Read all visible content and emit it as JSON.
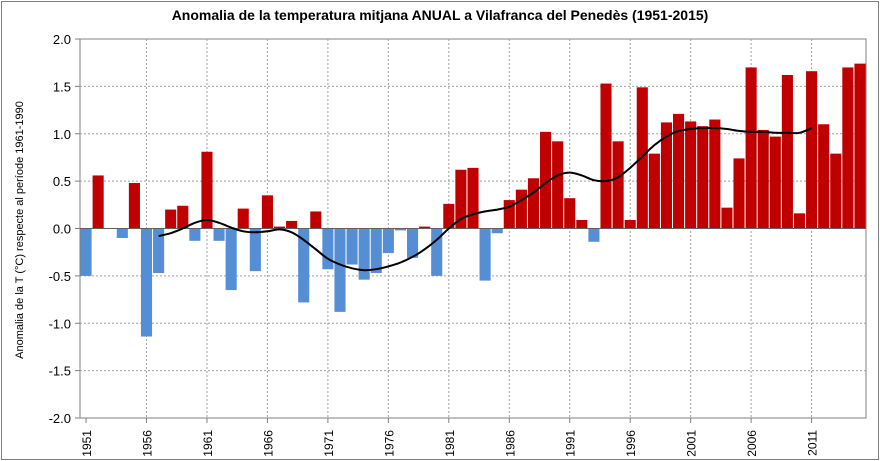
{
  "chart_data": {
    "type": "bar",
    "title": "Anomalia de la temperatura mitjana ANUAL a Vilafranca del Penedès (1951-2015)",
    "xlabel": "",
    "ylabel": "Anomalia de la T (°C) respecte al període 1961-1990",
    "ylim": [
      -2.0,
      2.0
    ],
    "yticks": [
      "2.0",
      "1.5",
      "1.0",
      "0.5",
      "0.0",
      "-0.5",
      "-1.0",
      "-1.5",
      "-2.0"
    ],
    "xticks": [
      "1951",
      "1956",
      "1961",
      "1966",
      "1971",
      "1976",
      "1981",
      "1986",
      "1991",
      "1996",
      "2001",
      "2006",
      "2011"
    ],
    "grid": true,
    "positive_color": "#C00000",
    "negative_color": "#558ED5",
    "smooth_color": "#000000",
    "years": [
      1951,
      1952,
      1953,
      1954,
      1955,
      1956,
      1957,
      1958,
      1959,
      1960,
      1961,
      1962,
      1963,
      1964,
      1965,
      1966,
      1967,
      1968,
      1969,
      1970,
      1971,
      1972,
      1973,
      1974,
      1975,
      1976,
      1977,
      1978,
      1979,
      1980,
      1981,
      1982,
      1983,
      1984,
      1985,
      1986,
      1987,
      1988,
      1989,
      1990,
      1991,
      1992,
      1993,
      1994,
      1995,
      1996,
      1997,
      1998,
      1999,
      2000,
      2001,
      2002,
      2003,
      2004,
      2005,
      2006,
      2007,
      2008,
      2009,
      2010,
      2011,
      2012,
      2013,
      2014,
      2015
    ],
    "values": [
      -0.5,
      0.56,
      0.0,
      -0.1,
      0.48,
      -1.14,
      -0.47,
      0.2,
      0.24,
      -0.13,
      0.81,
      -0.13,
      -0.65,
      0.21,
      -0.45,
      0.35,
      0.02,
      0.08,
      -0.78,
      0.18,
      -0.43,
      -0.88,
      -0.38,
      -0.54,
      -0.47,
      -0.26,
      -0.02,
      -0.31,
      0.02,
      -0.5,
      0.26,
      0.62,
      0.64,
      -0.55,
      -0.05,
      0.3,
      0.41,
      0.53,
      1.02,
      0.92,
      0.32,
      0.09,
      -0.14,
      1.53,
      0.92,
      0.09,
      1.49,
      0.79,
      1.12,
      1.21,
      1.13,
      1.08,
      1.15,
      0.22,
      0.74,
      1.7,
      1.04,
      0.97,
      1.62,
      0.16,
      1.66,
      1.1,
      0.79,
      1.7,
      1.74
    ],
    "smooth_years": [
      1957,
      1958,
      1959,
      1960,
      1961,
      1962,
      1963,
      1964,
      1965,
      1966,
      1967,
      1968,
      1969,
      1970,
      1971,
      1972,
      1973,
      1974,
      1975,
      1976,
      1977,
      1978,
      1979,
      1980,
      1981,
      1982,
      1983,
      1984,
      1985,
      1986,
      1987,
      1988,
      1989,
      1990,
      1991,
      1992,
      1993,
      1994,
      1995,
      1996,
      1997,
      1998,
      1999,
      2000,
      2001,
      2002,
      2003,
      2004,
      2005,
      2006,
      2007,
      2008,
      2009,
      2010,
      2011
    ],
    "smooth_values": [
      -0.08,
      -0.05,
      0.0,
      0.06,
      0.09,
      0.06,
      0.01,
      -0.03,
      -0.04,
      -0.03,
      -0.01,
      -0.04,
      -0.12,
      -0.22,
      -0.32,
      -0.38,
      -0.42,
      -0.44,
      -0.43,
      -0.4,
      -0.36,
      -0.3,
      -0.22,
      -0.12,
      0.0,
      0.1,
      0.15,
      0.18,
      0.2,
      0.23,
      0.3,
      0.38,
      0.48,
      0.56,
      0.59,
      0.56,
      0.51,
      0.5,
      0.54,
      0.64,
      0.76,
      0.88,
      0.97,
      1.03,
      1.05,
      1.06,
      1.06,
      1.05,
      1.03,
      1.02,
      1.02,
      1.01,
      1.01,
      1.01,
      1.06
    ]
  }
}
